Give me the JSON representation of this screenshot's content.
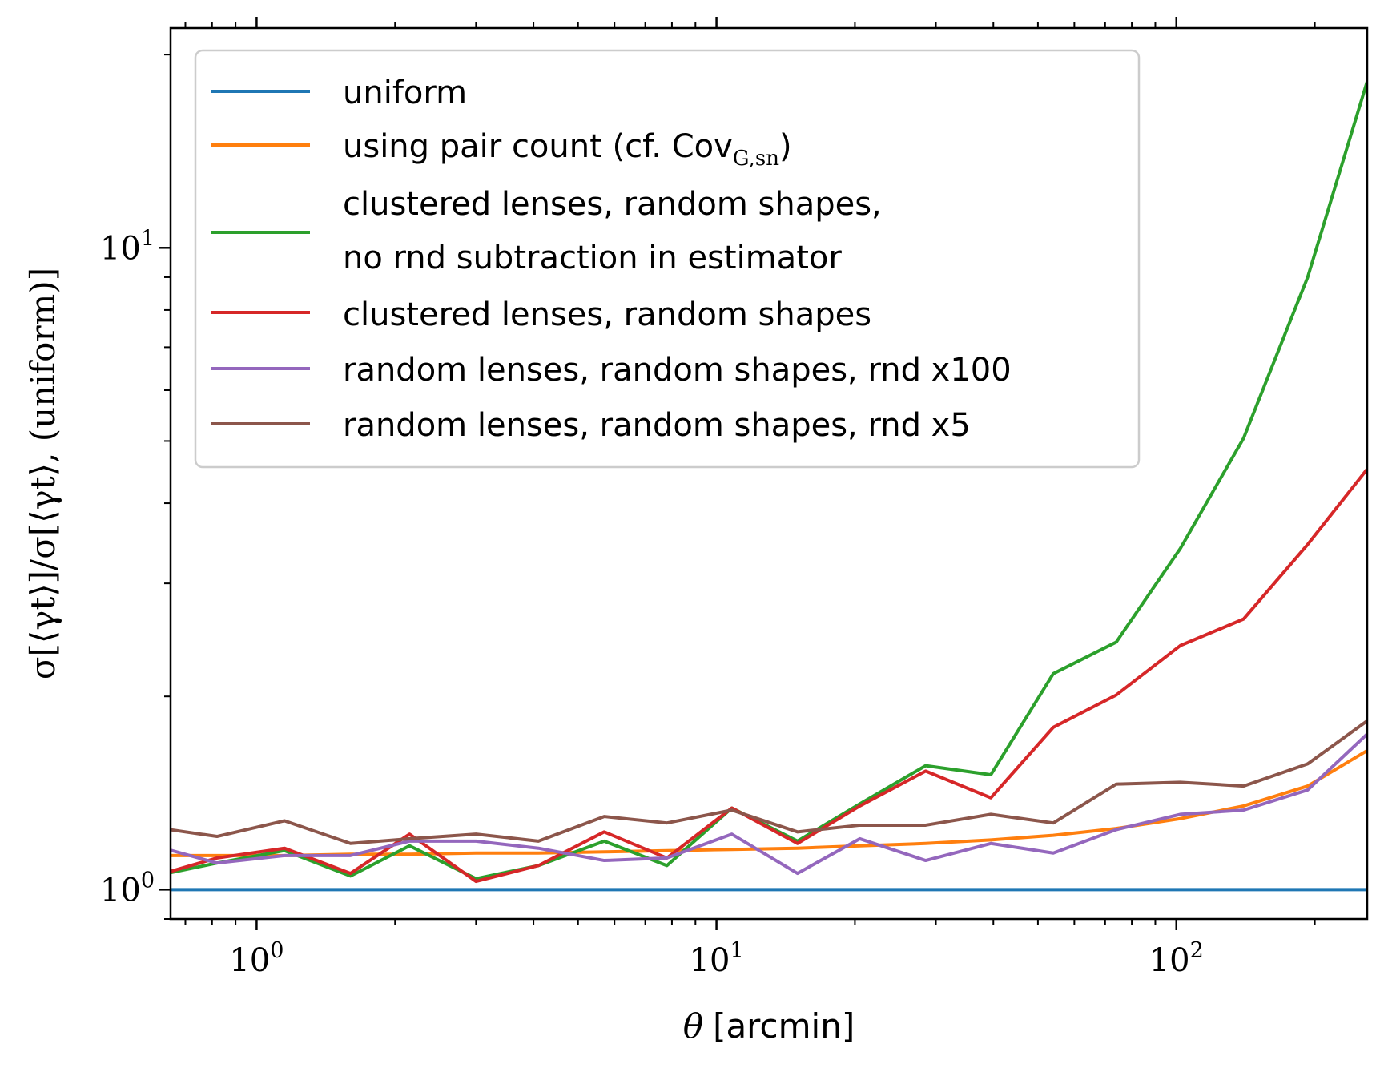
{
  "chart_data": {
    "type": "line",
    "x_scale": "log",
    "y_scale": "log",
    "xlabel_symbol": "θ",
    "xlabel_text": "[arcmin]",
    "ylabel": "σ[⟨γt⟩]/σ[⟨γt⟩, (uniform)]",
    "xlim": [
      0.65,
      260
    ],
    "ylim": [
      0.9,
      22
    ],
    "grid": false,
    "legend_location": "upper-left",
    "x_ticks": [
      {
        "value": 1,
        "base": "10",
        "exp": "0"
      },
      {
        "value": 10,
        "base": "10",
        "exp": "1"
      },
      {
        "value": 100,
        "base": "10",
        "exp": "2"
      }
    ],
    "y_ticks": [
      {
        "value": 1,
        "base": "10",
        "exp": "0"
      },
      {
        "value": 10,
        "base": "10",
        "exp": "1"
      }
    ],
    "x": [
      0.6,
      0.82,
      1.15,
      1.6,
      2.15,
      3.0,
      4.1,
      5.7,
      7.8,
      10.8,
      15.0,
      20.5,
      28.5,
      39.5,
      54.0,
      74.0,
      102.0,
      140.0,
      193.0,
      265.0
    ],
    "series": [
      {
        "name": "uniform",
        "color": "#1f77b4",
        "values": [
          1.0,
          1.0,
          1.0,
          1.0,
          1.0,
          1.0,
          1.0,
          1.0,
          1.0,
          1.0,
          1.0,
          1.0,
          1.0,
          1.0,
          1.0,
          1.0,
          1.0,
          1.0,
          1.0,
          1.0
        ]
      },
      {
        "name": "using pair count (cf. Cov",
        "name_sub": "G,sn",
        "name_tail": ")",
        "color": "#ff7f0e",
        "values": [
          1.13,
          1.13,
          1.13,
          1.135,
          1.135,
          1.14,
          1.14,
          1.145,
          1.15,
          1.155,
          1.16,
          1.17,
          1.18,
          1.195,
          1.215,
          1.245,
          1.29,
          1.35,
          1.45,
          1.66
        ]
      },
      {
        "name": "clustered lenses, random shapes,",
        "name_line2": "no rnd subtraction in estimator",
        "color": "#2ca02c",
        "values": [
          1.05,
          1.1,
          1.15,
          1.05,
          1.17,
          1.04,
          1.09,
          1.19,
          1.09,
          1.34,
          1.19,
          1.36,
          1.56,
          1.51,
          2.17,
          2.43,
          3.4,
          5.05,
          9.0,
          19.0
        ]
      },
      {
        "name": "clustered lenses, random shapes",
        "color": "#d62728",
        "values": [
          1.05,
          1.12,
          1.16,
          1.06,
          1.22,
          1.03,
          1.09,
          1.23,
          1.12,
          1.34,
          1.18,
          1.35,
          1.53,
          1.39,
          1.79,
          2.01,
          2.4,
          2.64,
          3.45,
          4.6
        ]
      },
      {
        "name": "random lenses, random shapes, rnd x100",
        "color": "#9467bd",
        "values": [
          1.17,
          1.1,
          1.13,
          1.13,
          1.19,
          1.19,
          1.16,
          1.11,
          1.12,
          1.22,
          1.06,
          1.2,
          1.11,
          1.18,
          1.14,
          1.24,
          1.31,
          1.33,
          1.43,
          1.77
        ]
      },
      {
        "name": "random lenses, random shapes, rnd x5",
        "color": "#8c564b",
        "values": [
          1.25,
          1.21,
          1.28,
          1.18,
          1.2,
          1.22,
          1.19,
          1.3,
          1.27,
          1.33,
          1.23,
          1.26,
          1.26,
          1.31,
          1.27,
          1.46,
          1.47,
          1.45,
          1.57,
          1.85
        ]
      }
    ]
  }
}
